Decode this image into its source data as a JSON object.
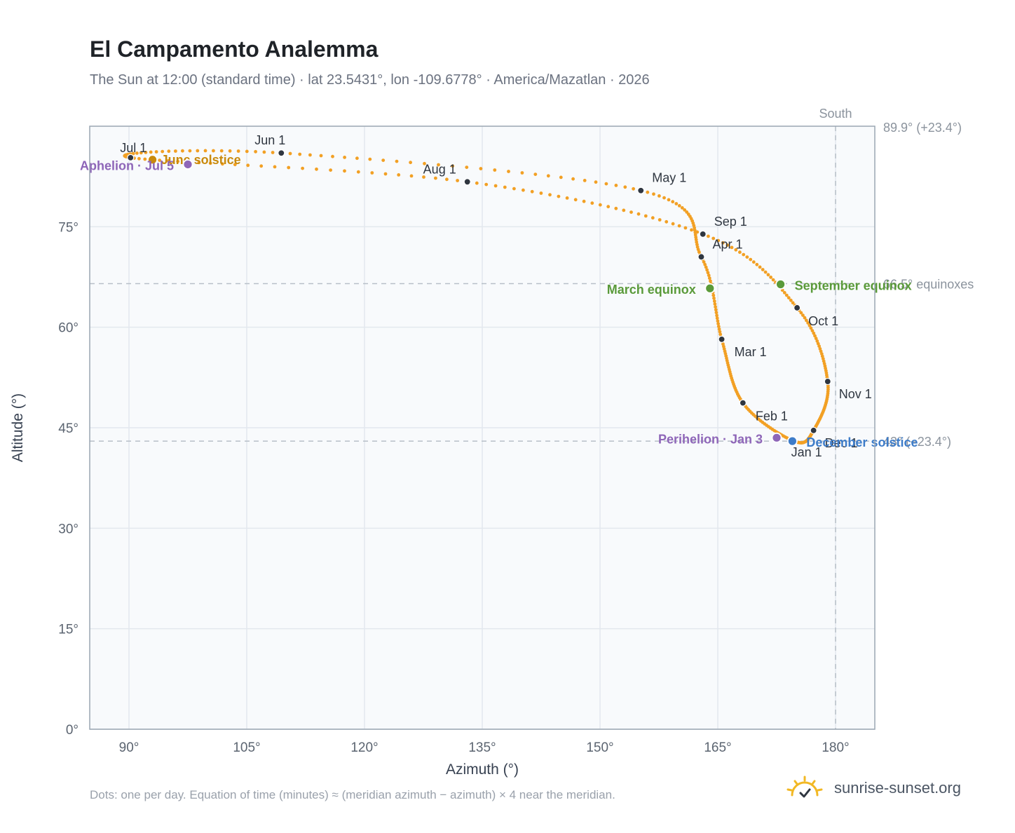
{
  "header": {
    "title": "El Campamento Analemma",
    "subtitle": "The Sun at 12:00 (standard time) · lat 23.5431°, lon -109.6778° · America/Mazatlan · 2026"
  },
  "footer": {
    "note": "Dots: one per day. Equation of time (minutes) ≈ (meridian azimuth − azimuth) × 4 near the meridian.",
    "brand": "sunrise-sunset.org",
    "brand_icon": "sun-horizon-icon"
  },
  "colors": {
    "analemma": "#f2a024",
    "month_dot": "#2f3640",
    "equinox": "#5a9a3a",
    "solstice_june": "#c98a0c",
    "solstice_december": "#3d7cc9",
    "apsis": "#8e66b8",
    "plot_bg": "#f8fafc",
    "grid": "#e3e8ee",
    "reference_line": "#b7bfc8"
  },
  "chart_data": {
    "type": "scatter",
    "xlabel": "Azimuth (°)",
    "ylabel": "Altitude (°)",
    "xlim": [
      85,
      185
    ],
    "ylim": [
      0,
      90
    ],
    "x_ticks": [
      90,
      105,
      120,
      135,
      150,
      165,
      180
    ],
    "x_tick_labels": [
      "90°",
      "105°",
      "120°",
      "135°",
      "150°",
      "165°",
      "180°"
    ],
    "y_ticks": [
      0,
      15,
      30,
      45,
      60,
      75
    ],
    "y_tick_labels": [
      "0°",
      "15°",
      "30°",
      "45°",
      "60°",
      "75°"
    ],
    "grid": true,
    "reference_lines": [
      {
        "axis": "y",
        "value": 89.9,
        "label": "89.9° (+23.4°)",
        "dashed": false
      },
      {
        "axis": "y",
        "value": 66.5,
        "label": "66.5° equinoxes",
        "dashed": true
      },
      {
        "axis": "y",
        "value": 43.0,
        "label": "43° (−23.4°)",
        "dashed": true
      },
      {
        "axis": "x",
        "value": 180,
        "label": "South",
        "dashed": true
      }
    ],
    "months": [
      {
        "label": "Jan 1",
        "x": 174.7,
        "y": 43.0
      },
      {
        "label": "Feb 1",
        "x": 168.2,
        "y": 48.7
      },
      {
        "label": "Mar 1",
        "x": 165.5,
        "y": 58.2
      },
      {
        "label": "Apr 1",
        "x": 162.9,
        "y": 70.5
      },
      {
        "label": "May 1",
        "x": 155.2,
        "y": 80.4
      },
      {
        "label": "Jun 1",
        "x": 109.4,
        "y": 86.0
      },
      {
        "label": "Jul 1",
        "x": 90.2,
        "y": 85.3
      },
      {
        "label": "Aug 1",
        "x": 133.1,
        "y": 81.7
      },
      {
        "label": "Sep 1",
        "x": 163.1,
        "y": 73.9
      },
      {
        "label": "Oct 1",
        "x": 175.1,
        "y": 62.9
      },
      {
        "label": "Nov 1",
        "x": 179.0,
        "y": 51.9
      },
      {
        "label": "Dec 1",
        "x": 177.2,
        "y": 44.6
      }
    ],
    "events": [
      {
        "label": "March equinox",
        "x": 164.0,
        "y": 65.8,
        "kind": "equinox"
      },
      {
        "label": "September equinox",
        "x": 173.0,
        "y": 66.4,
        "kind": "equinox"
      },
      {
        "label": "June solstice",
        "x": 93.0,
        "y": 85.0,
        "kind": "solstice_june"
      },
      {
        "label": "December solstice",
        "x": 174.5,
        "y": 43.0,
        "kind": "solstice_december"
      },
      {
        "label": "Perihelion · Jan 3",
        "x": 172.5,
        "y": 43.5,
        "kind": "apsis"
      },
      {
        "label": "Aphelion · Jul 5",
        "x": 97.5,
        "y": 84.3,
        "kind": "apsis"
      }
    ]
  }
}
